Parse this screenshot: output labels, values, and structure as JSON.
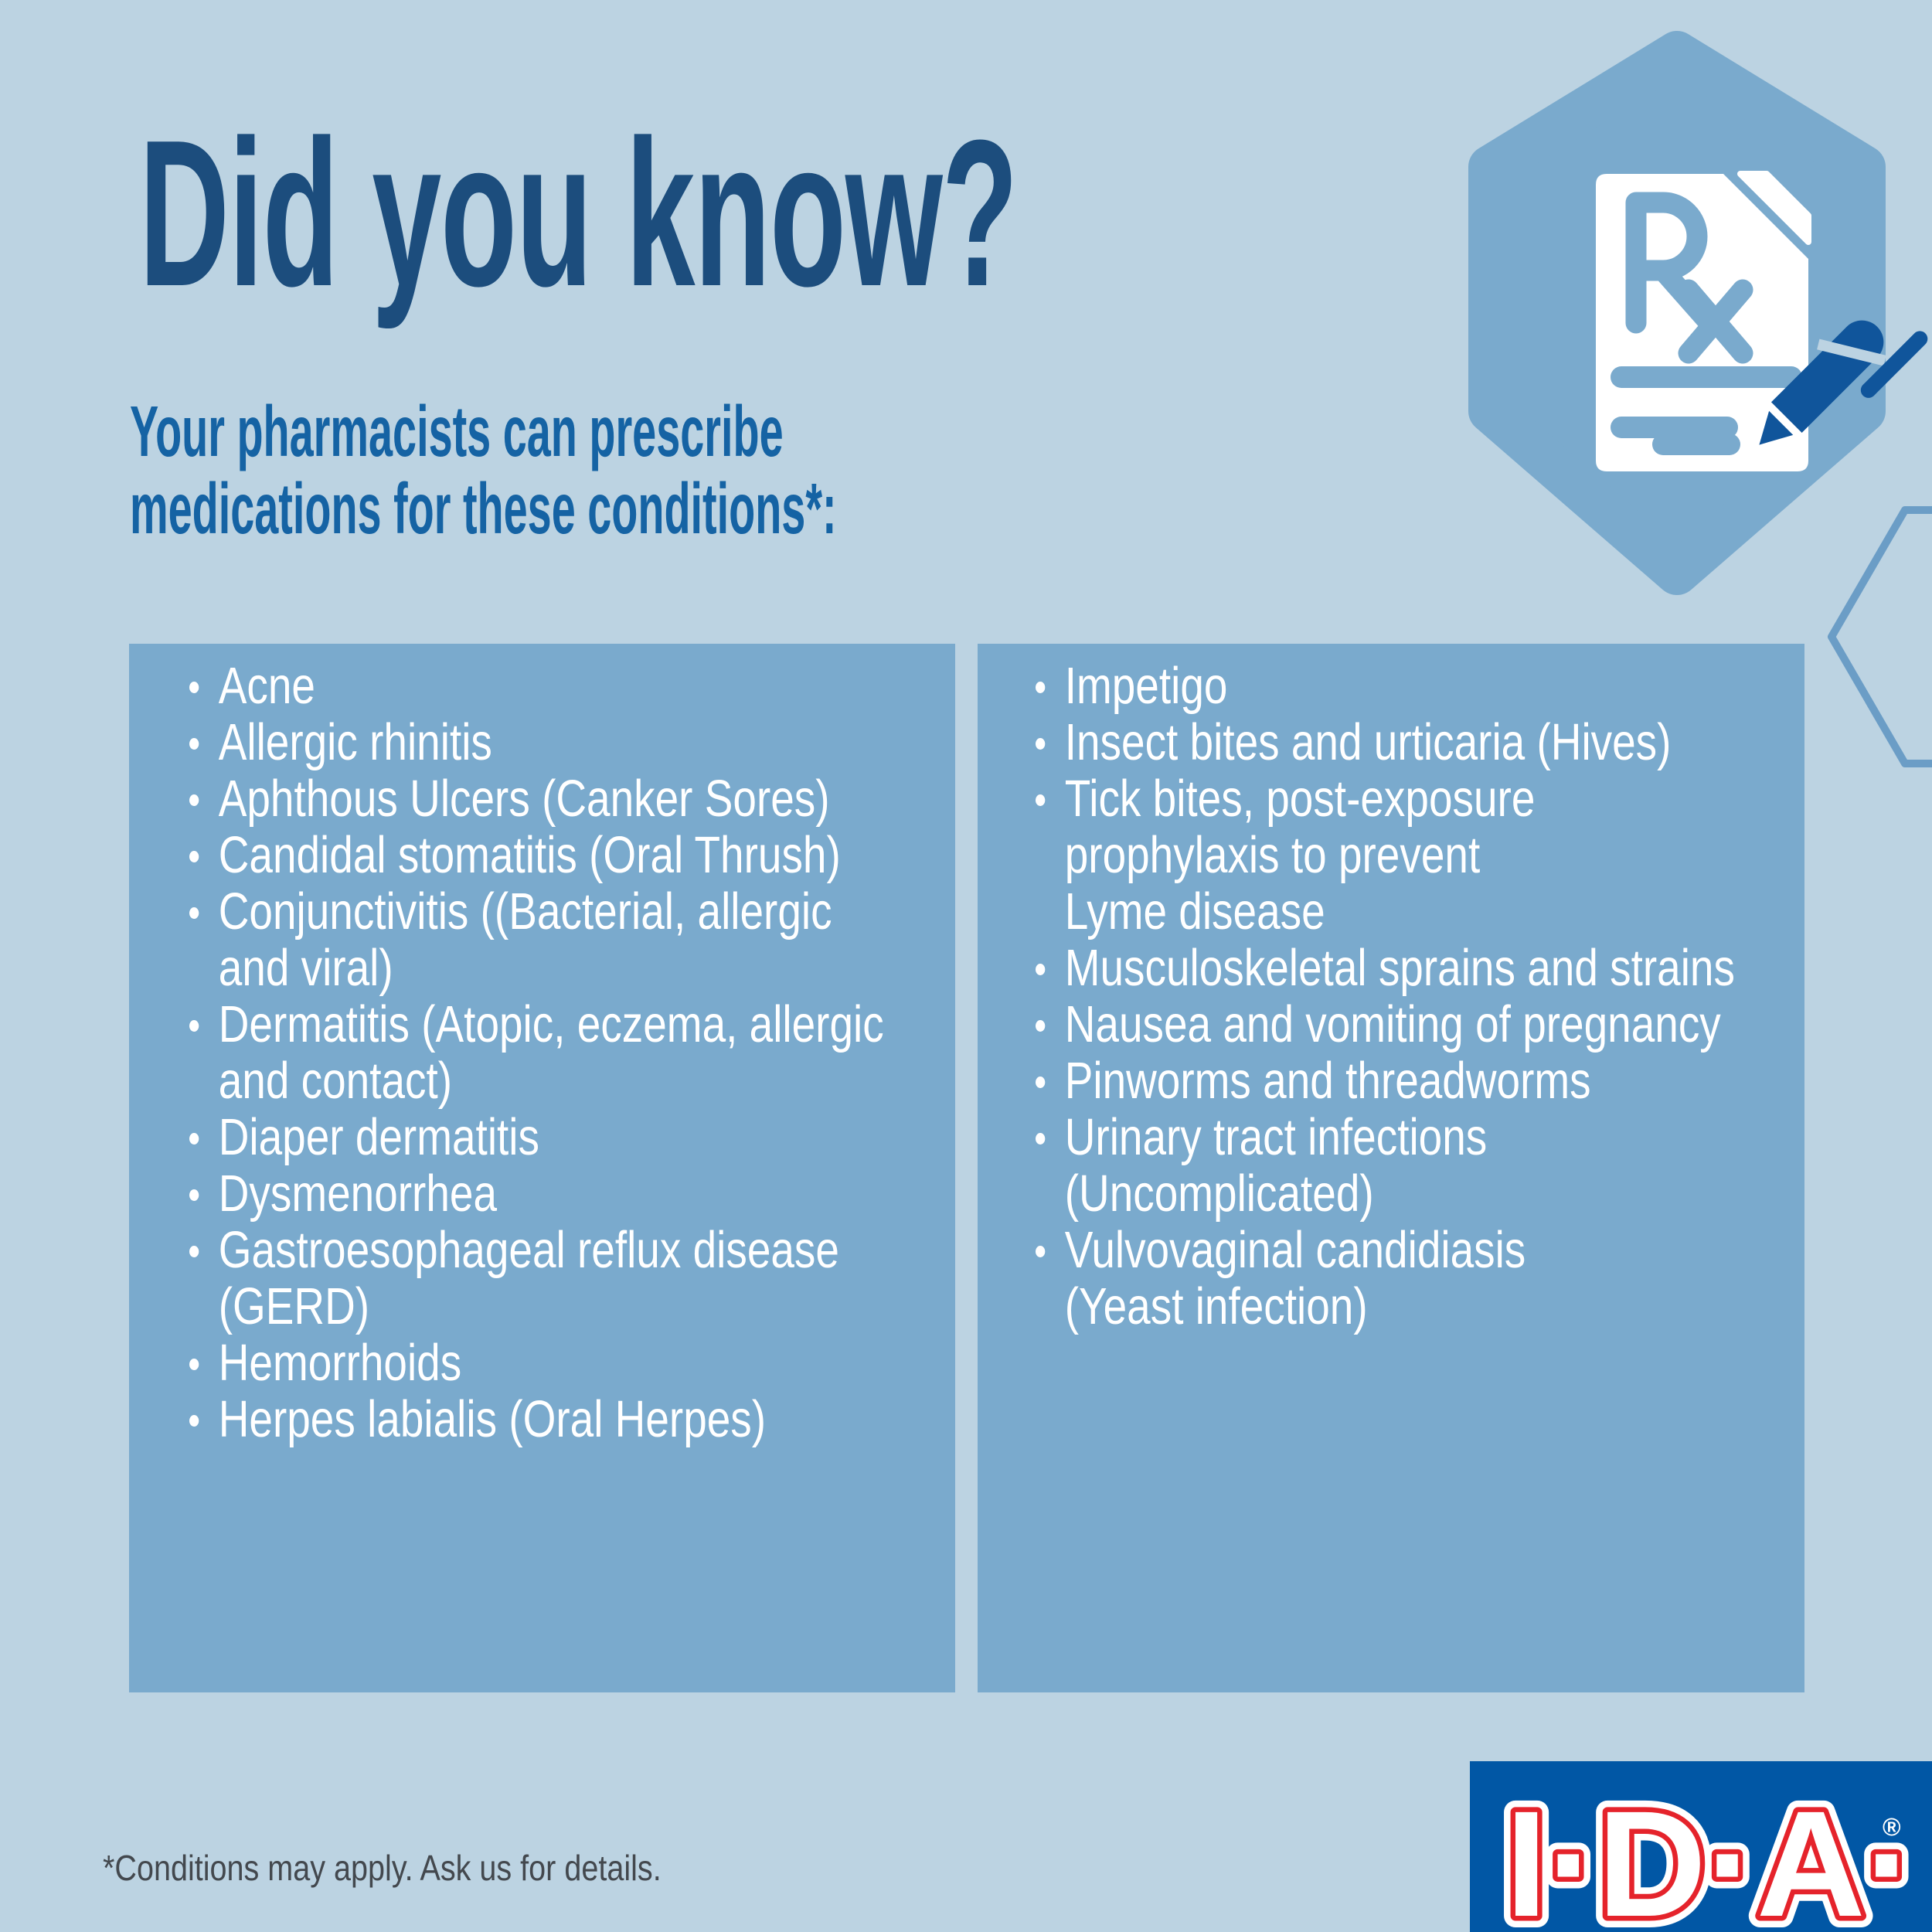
{
  "page": {
    "background_color": "#bcd3e2",
    "panel_color": "#7aaacd",
    "title_color": "#1c4d7d",
    "subtitle_color": "#1563a4",
    "pen_color": "#10559b",
    "logo_blue": "#0157a5",
    "logo_red": "#e5232b"
  },
  "header": {
    "title": "Did you know?",
    "subtitle_line1": "Your pharmacists can prescribe",
    "subtitle_line2": "medications for these conditions*:"
  },
  "badge": {
    "icon": "prescription-document-with-pen",
    "rx_symbol": "Rx"
  },
  "conditions": {
    "left": [
      [
        "Acne"
      ],
      [
        "Allergic rhinitis"
      ],
      [
        "Aphthous Ulcers (Canker Sores)"
      ],
      [
        "Candidal stomatitis (Oral Thrush)"
      ],
      [
        "Conjunctivitis ((Bacterial, allergic",
        "and viral)"
      ],
      [
        "Dermatitis (Atopic, eczema, allergic",
        "and contact)"
      ],
      [
        "Diaper dermatitis"
      ],
      [
        "Dysmenorrhea"
      ],
      [
        "Gastroesophageal reflux disease",
        "(GERD)"
      ],
      [
        "Hemorrhoids"
      ],
      [
        "Herpes labialis (Oral Herpes)"
      ]
    ],
    "right": [
      [
        "Impetigo"
      ],
      [
        "Insect bites and urticaria (Hives)"
      ],
      [
        "Tick bites, post-exposure",
        "prophylaxis to prevent",
        "Lyme disease"
      ],
      [
        "Musculoskeletal sprains and strains"
      ],
      [
        "Nausea and vomiting of pregnancy"
      ],
      [
        "Pinworms and threadworms"
      ],
      [
        "Urinary tract infections",
        "(Uncomplicated)"
      ],
      [
        "Vulvovaginal candidiasis",
        "(Yeast infection)"
      ]
    ]
  },
  "footer": {
    "disclaimer": "*Conditions may apply. Ask us for details."
  },
  "logo": {
    "text": "I·D·A·",
    "registered_mark": "®"
  }
}
